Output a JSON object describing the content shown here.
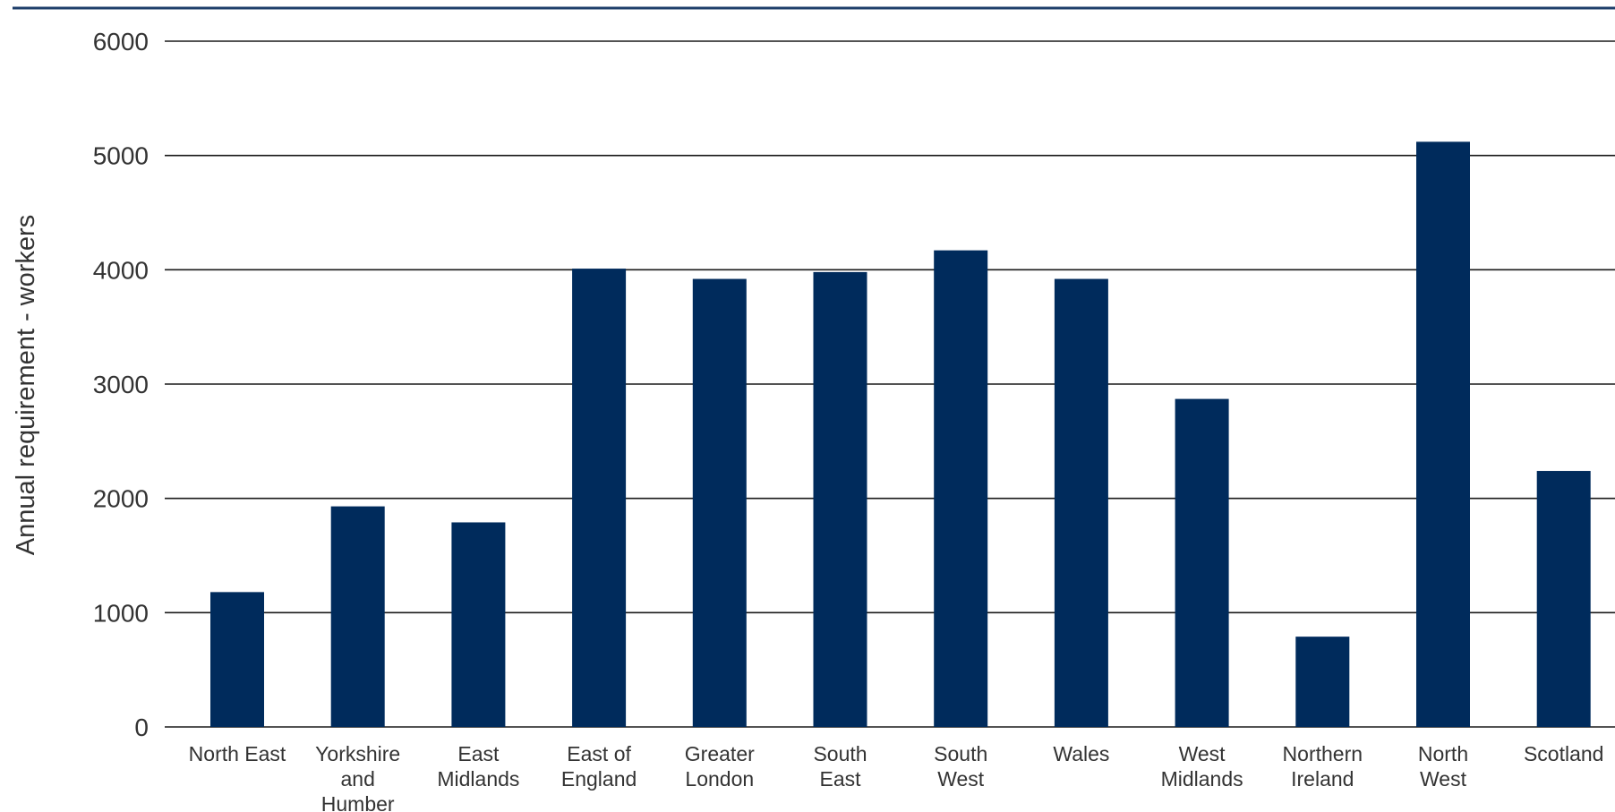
{
  "chart_data": {
    "type": "bar",
    "title": "",
    "xlabel": "",
    "ylabel": "Annual requirement - workers",
    "ylim": [
      0,
      6000
    ],
    "yticks": [
      0,
      1000,
      2000,
      3000,
      4000,
      5000,
      6000
    ],
    "grid": true,
    "legend": "none",
    "bar_color": "#002b5c",
    "accent_color": "#1f3f6b",
    "categories": [
      [
        "North East"
      ],
      [
        "Yorkshire",
        "and",
        "Humber"
      ],
      [
        "East",
        "Midlands"
      ],
      [
        "East of",
        "England"
      ],
      [
        "Greater",
        "London"
      ],
      [
        "South",
        "East"
      ],
      [
        "South",
        "West"
      ],
      [
        "Wales"
      ],
      [
        "West",
        "Midlands"
      ],
      [
        "Northern",
        "Ireland"
      ],
      [
        "North",
        "West"
      ],
      [
        "Scotland"
      ]
    ],
    "values": [
      1180,
      1930,
      1790,
      4010,
      3920,
      3980,
      4170,
      3920,
      2870,
      790,
      5120,
      2240
    ]
  }
}
